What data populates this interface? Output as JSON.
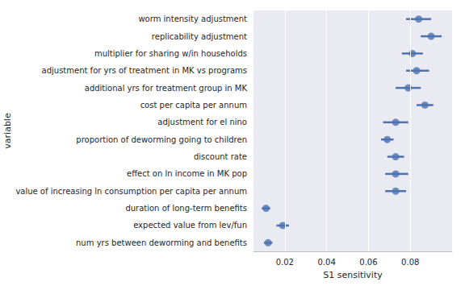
{
  "chart_data": {
    "type": "pointplot",
    "orientation": "horizontal",
    "xlabel": "S1 sensitivity",
    "ylabel": "variable",
    "categories": [
      "worm intensity adjustment",
      "replicability adjustment",
      "multiplier for sharing w/in households",
      "adjustment for yrs of treatment in MK vs programs",
      "additional yrs for treatment group in MK",
      "cost per capita per annum",
      "adjustment for el nino",
      "proportion of deworming going to children",
      "discount rate",
      "effect on ln income in MK pop",
      "value of increasing ln consumption per capita per annum",
      "duration of long-term benefits",
      "expected value from lev/fun",
      "num yrs between deworming and benefits"
    ],
    "values": [
      0.084,
      0.09,
      0.081,
      0.083,
      0.079,
      0.087,
      0.073,
      0.069,
      0.073,
      0.073,
      0.073,
      0.011,
      0.019,
      0.012
    ],
    "ci_low": [
      0.078,
      0.085,
      0.076,
      0.078,
      0.073,
      0.083,
      0.067,
      0.066,
      0.069,
      0.068,
      0.068,
      0.009,
      0.016,
      0.01
    ],
    "ci_high": [
      0.09,
      0.095,
      0.086,
      0.089,
      0.085,
      0.091,
      0.079,
      0.072,
      0.077,
      0.079,
      0.078,
      0.013,
      0.022,
      0.014
    ],
    "color": "#4c72b0",
    "xlim": [
      0.005,
      0.1
    ],
    "xticks": [
      0.02,
      0.04,
      0.06,
      0.08
    ],
    "grid": true
  }
}
